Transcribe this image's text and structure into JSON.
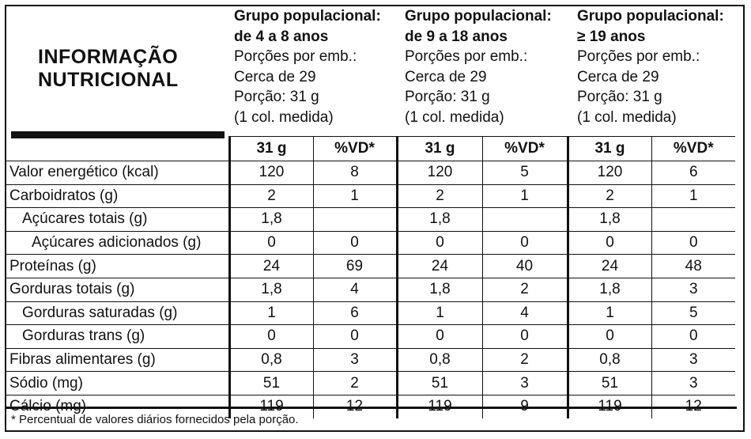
{
  "title": {
    "line1": "INFORMAÇÃO",
    "line2": "NUTRICIONAL"
  },
  "groups": [
    {
      "heading1": "Grupo populacional:",
      "heading2": "de 4 a 8 anos",
      "servings_label": "Porções por emb.:",
      "servings_value": "Cerca de 29",
      "portion": "Porção: 31 g",
      "portion_measure": "(1 col. medida)"
    },
    {
      "heading1": "Grupo populacional:",
      "heading2": "de 9 a 18 anos",
      "servings_label": "Porções por emb.:",
      "servings_value": "Cerca de 29",
      "portion": "Porção: 31 g",
      "portion_measure": "(1 col. medida)"
    },
    {
      "heading1": "Grupo populacional:",
      "heading2": "≥ 19 anos",
      "servings_label": "Porções por emb.:",
      "servings_value": "Cerca de 29",
      "portion": "Porção: 31 g",
      "portion_measure": "(1 col. medida)"
    }
  ],
  "columns": [
    "31 g",
    "%VD*",
    "31 g",
    "%VD*",
    "31 g",
    "%VD*"
  ],
  "rows": [
    {
      "name": "Valor energético (kcal)",
      "indent": 0,
      "values": [
        "120",
        "8",
        "120",
        "5",
        "120",
        "6"
      ]
    },
    {
      "name": "Carboidratos (g)",
      "indent": 0,
      "values": [
        "2",
        "1",
        "2",
        "1",
        "2",
        "1"
      ]
    },
    {
      "name": "Açúcares totais (g)",
      "indent": 1,
      "values": [
        "1,8",
        "",
        "1,8",
        "",
        "1,8",
        ""
      ]
    },
    {
      "name": "Açúcares adicionados (g)",
      "indent": 2,
      "values": [
        "0",
        "0",
        "0",
        "0",
        "0",
        "0"
      ]
    },
    {
      "name": "Proteínas (g)",
      "indent": 0,
      "values": [
        "24",
        "69",
        "24",
        "40",
        "24",
        "48"
      ]
    },
    {
      "name": "Gorduras totais (g)",
      "indent": 0,
      "values": [
        "1,8",
        "4",
        "1,8",
        "2",
        "1,8",
        "3"
      ]
    },
    {
      "name": "Gorduras saturadas (g)",
      "indent": 1,
      "values": [
        "1",
        "6",
        "1",
        "4",
        "1",
        "5"
      ]
    },
    {
      "name": "Gorduras trans (g)",
      "indent": 1,
      "values": [
        "0",
        "0",
        "0",
        "0",
        "0",
        "0"
      ]
    },
    {
      "name": "Fibras alimentares (g)",
      "indent": 0,
      "values": [
        "0,8",
        "3",
        "0,8",
        "2",
        "0,8",
        "3"
      ]
    },
    {
      "name": "Sódio (mg)",
      "indent": 0,
      "values": [
        "51",
        "2",
        "51",
        "3",
        "51",
        "3"
      ]
    },
    {
      "name": "Cálcio (mg)",
      "indent": 0,
      "values": [
        "119",
        "12",
        "119",
        "9",
        "119",
        "12"
      ]
    }
  ],
  "footnote": "* Percentual de valores diários fornecidos pela porção."
}
